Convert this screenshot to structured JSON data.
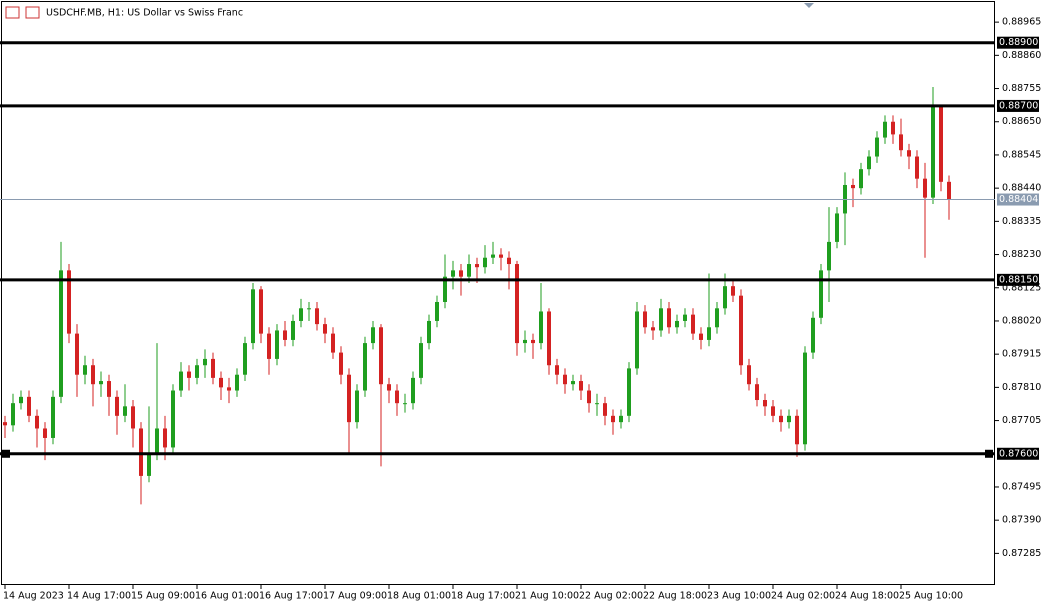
{
  "chart_data": {
    "type": "candlestick",
    "title": "USDCHF.MB, H1:  US Dollar vs Swiss Franc",
    "up_color": "#1f9e1f",
    "down_color": "#d42222",
    "ylim": [
      0.87185,
      0.89035
    ],
    "yticks": [
      {
        "value": 0.88965,
        "label": "0.88965"
      },
      {
        "value": 0.8886,
        "label": "0.88860"
      },
      {
        "value": 0.88755,
        "label": "0.88755"
      },
      {
        "value": 0.8865,
        "label": "0.88650"
      },
      {
        "value": 0.88545,
        "label": "0.88545"
      },
      {
        "value": 0.8844,
        "label": "0.88440"
      },
      {
        "value": 0.88335,
        "label": "0.88335"
      },
      {
        "value": 0.8823,
        "label": "0.88230"
      },
      {
        "value": 0.88125,
        "label": "0.88125"
      },
      {
        "value": 0.8802,
        "label": "0.88020"
      },
      {
        "value": 0.87915,
        "label": "0.87915"
      },
      {
        "value": 0.8781,
        "label": "0.87810"
      },
      {
        "value": 0.87705,
        "label": "0.87705"
      },
      {
        "value": 0.87495,
        "label": "0.87495"
      },
      {
        "value": 0.8739,
        "label": "0.87390"
      },
      {
        "value": 0.87285,
        "label": "0.87285"
      }
    ],
    "levels": [
      {
        "value": 0.889,
        "label": "0.88900"
      },
      {
        "value": 0.887,
        "label": "0.88700"
      },
      {
        "value": 0.8815,
        "label": "0.88150"
      },
      {
        "value": 0.876,
        "label": "0.87600"
      }
    ],
    "current_price": 0.88404,
    "categories": [
      "14 Aug 2023",
      null,
      null,
      null,
      null,
      null,
      null,
      null,
      "14 Aug 17:00",
      null,
      null,
      null,
      null,
      null,
      null,
      null,
      "15 Aug 09:00",
      null,
      null,
      null,
      null,
      null,
      null,
      null,
      "16 Aug 01:00",
      null,
      null,
      null,
      null,
      null,
      null,
      null,
      "16 Aug 17:00",
      null,
      null,
      null,
      null,
      null,
      null,
      null,
      "17 Aug 09:00",
      null,
      null,
      null,
      null,
      null,
      null,
      null,
      "18 Aug 01:00",
      null,
      null,
      null,
      null,
      null,
      null,
      null,
      "18 Aug 17:00",
      null,
      null,
      null,
      null,
      null,
      null,
      null,
      "21 Aug 10:00",
      null,
      null,
      null,
      null,
      null,
      null,
      null,
      "22 Aug 02:00",
      null,
      null,
      null,
      null,
      null,
      null,
      null,
      "22 Aug 18:00",
      null,
      null,
      null,
      null,
      null,
      null,
      null,
      "23 Aug 10:00",
      null,
      null,
      null,
      null,
      null,
      null,
      null,
      "24 Aug 02:00",
      null,
      null,
      null,
      null,
      null,
      null,
      null,
      "24 Aug 18:00",
      null,
      null,
      null,
      null,
      null,
      null,
      null,
      "25 Aug 10:00",
      null,
      null,
      null,
      null,
      null,
      null
    ],
    "ohlc": [
      [
        0.877,
        0.8772,
        0.8765,
        0.8769
      ],
      [
        0.8769,
        0.8779,
        0.8767,
        0.8776
      ],
      [
        0.8776,
        0.878,
        0.8774,
        0.8778
      ],
      [
        0.8778,
        0.878,
        0.877,
        0.8772
      ],
      [
        0.8772,
        0.8774,
        0.8762,
        0.8768
      ],
      [
        0.8768,
        0.877,
        0.8758,
        0.8765
      ],
      [
        0.8765,
        0.878,
        0.8763,
        0.8778
      ],
      [
        0.8778,
        0.8827,
        0.8776,
        0.8818
      ],
      [
        0.8818,
        0.882,
        0.8795,
        0.8798
      ],
      [
        0.8798,
        0.8801,
        0.8778,
        0.8785
      ],
      [
        0.8785,
        0.8791,
        0.8782,
        0.8788
      ],
      [
        0.8788,
        0.879,
        0.8775,
        0.8782
      ],
      [
        0.8782,
        0.8786,
        0.8778,
        0.8783
      ],
      [
        0.8783,
        0.8785,
        0.8772,
        0.8778
      ],
      [
        0.8778,
        0.878,
        0.8766,
        0.8772
      ],
      [
        0.8772,
        0.8782,
        0.877,
        0.8775
      ],
      [
        0.8775,
        0.8777,
        0.8762,
        0.8768
      ],
      [
        0.8768,
        0.877,
        0.8744,
        0.8753
      ],
      [
        0.8753,
        0.8775,
        0.8751,
        0.876
      ],
      [
        0.876,
        0.8795,
        0.8758,
        0.8768
      ],
      [
        0.8768,
        0.8772,
        0.8758,
        0.8762
      ],
      [
        0.8762,
        0.8782,
        0.876,
        0.878
      ],
      [
        0.878,
        0.8789,
        0.8778,
        0.8786
      ],
      [
        0.8786,
        0.8788,
        0.878,
        0.8784
      ],
      [
        0.8784,
        0.879,
        0.8782,
        0.8788
      ],
      [
        0.8788,
        0.8793,
        0.8784,
        0.879
      ],
      [
        0.879,
        0.8792,
        0.8782,
        0.8784
      ],
      [
        0.8784,
        0.8786,
        0.8777,
        0.8781
      ],
      [
        0.8781,
        0.8784,
        0.8776,
        0.878
      ],
      [
        0.878,
        0.8787,
        0.8778,
        0.8785
      ],
      [
        0.8785,
        0.8797,
        0.8783,
        0.8795
      ],
      [
        0.8795,
        0.8814,
        0.8793,
        0.8812
      ],
      [
        0.8812,
        0.8813,
        0.8795,
        0.8798
      ],
      [
        0.8798,
        0.88,
        0.8785,
        0.879
      ],
      [
        0.879,
        0.8801,
        0.8788,
        0.8799
      ],
      [
        0.8799,
        0.8802,
        0.8794,
        0.8796
      ],
      [
        0.8796,
        0.8804,
        0.8794,
        0.8802
      ],
      [
        0.8802,
        0.8809,
        0.88,
        0.8806
      ],
      [
        0.8806,
        0.8808,
        0.8802,
        0.8806
      ],
      [
        0.8806,
        0.8808,
        0.8799,
        0.8801
      ],
      [
        0.8801,
        0.8803,
        0.8795,
        0.8798
      ],
      [
        0.8798,
        0.88,
        0.879,
        0.8792
      ],
      [
        0.8792,
        0.8794,
        0.8782,
        0.8785
      ],
      [
        0.8785,
        0.8787,
        0.876,
        0.877
      ],
      [
        0.877,
        0.8782,
        0.8768,
        0.878
      ],
      [
        0.878,
        0.8797,
        0.8778,
        0.8795
      ],
      [
        0.8795,
        0.8802,
        0.8793,
        0.88
      ],
      [
        0.88,
        0.8801,
        0.8756,
        0.8782
      ],
      [
        0.8782,
        0.8784,
        0.8776,
        0.878
      ],
      [
        0.878,
        0.8782,
        0.8772,
        0.8776
      ],
      [
        0.8776,
        0.8779,
        0.8773,
        0.8776
      ],
      [
        0.8776,
        0.8786,
        0.8774,
        0.8784
      ],
      [
        0.8784,
        0.8797,
        0.8782,
        0.8795
      ],
      [
        0.8795,
        0.8804,
        0.8793,
        0.8802
      ],
      [
        0.8802,
        0.881,
        0.88,
        0.8808
      ],
      [
        0.8808,
        0.8823,
        0.8806,
        0.8816
      ],
      [
        0.8816,
        0.8821,
        0.8812,
        0.8818
      ],
      [
        0.8818,
        0.882,
        0.881,
        0.8816
      ],
      [
        0.8816,
        0.8823,
        0.8814,
        0.882
      ],
      [
        0.882,
        0.8822,
        0.8814,
        0.8819
      ],
      [
        0.8819,
        0.8826,
        0.8817,
        0.8822
      ],
      [
        0.8822,
        0.8827,
        0.882,
        0.8823
      ],
      [
        0.8823,
        0.8825,
        0.8818,
        0.8822
      ],
      [
        0.8822,
        0.8824,
        0.8812,
        0.882
      ],
      [
        0.882,
        0.8821,
        0.8791,
        0.8795
      ],
      [
        0.8795,
        0.8799,
        0.8792,
        0.8796
      ],
      [
        0.8796,
        0.8798,
        0.879,
        0.8795
      ],
      [
        0.8795,
        0.8814,
        0.8793,
        0.8805
      ],
      [
        0.8805,
        0.8806,
        0.8785,
        0.8788
      ],
      [
        0.8788,
        0.879,
        0.8782,
        0.8785
      ],
      [
        0.8785,
        0.8787,
        0.8779,
        0.8782
      ],
      [
        0.8782,
        0.8785,
        0.878,
        0.8783
      ],
      [
        0.8783,
        0.8785,
        0.8777,
        0.878
      ],
      [
        0.878,
        0.8782,
        0.8773,
        0.8776
      ],
      [
        0.8776,
        0.8779,
        0.8772,
        0.8776
      ],
      [
        0.8776,
        0.8778,
        0.8769,
        0.8772
      ],
      [
        0.8772,
        0.8774,
        0.8766,
        0.877
      ],
      [
        0.877,
        0.8774,
        0.8768,
        0.8772
      ],
      [
        0.8772,
        0.8789,
        0.877,
        0.8787
      ],
      [
        0.8787,
        0.8808,
        0.8785,
        0.8805
      ],
      [
        0.8805,
        0.8807,
        0.8798,
        0.88
      ],
      [
        0.88,
        0.8802,
        0.8796,
        0.8799
      ],
      [
        0.8799,
        0.8809,
        0.8797,
        0.8806
      ],
      [
        0.8806,
        0.8808,
        0.8798,
        0.88
      ],
      [
        0.88,
        0.8804,
        0.8798,
        0.8802
      ],
      [
        0.8802,
        0.8806,
        0.88,
        0.8804
      ],
      [
        0.8804,
        0.8806,
        0.8796,
        0.8798
      ],
      [
        0.8798,
        0.88,
        0.8793,
        0.8796
      ],
      [
        0.8796,
        0.8817,
        0.8794,
        0.88
      ],
      [
        0.88,
        0.8808,
        0.8798,
        0.8806
      ],
      [
        0.8806,
        0.8817,
        0.8804,
        0.8813
      ],
      [
        0.8813,
        0.8815,
        0.8808,
        0.881
      ],
      [
        0.881,
        0.8812,
        0.8785,
        0.8788
      ],
      [
        0.8788,
        0.879,
        0.878,
        0.8782
      ],
      [
        0.8782,
        0.8784,
        0.8775,
        0.8777
      ],
      [
        0.8777,
        0.8779,
        0.8772,
        0.8775
      ],
      [
        0.8775,
        0.8777,
        0.877,
        0.8772
      ],
      [
        0.8772,
        0.8774,
        0.8767,
        0.877
      ],
      [
        0.877,
        0.8774,
        0.8768,
        0.8772
      ],
      [
        0.8772,
        0.8774,
        0.8759,
        0.8763
      ],
      [
        0.8763,
        0.8794,
        0.8761,
        0.8792
      ],
      [
        0.8792,
        0.8805,
        0.879,
        0.8803
      ],
      [
        0.8803,
        0.882,
        0.8801,
        0.8818
      ],
      [
        0.8818,
        0.8838,
        0.8808,
        0.8827
      ],
      [
        0.8827,
        0.8838,
        0.8825,
        0.8836
      ],
      [
        0.8836,
        0.8849,
        0.8826,
        0.8845
      ],
      [
        0.8845,
        0.8847,
        0.8838,
        0.8844
      ],
      [
        0.8844,
        0.8852,
        0.8842,
        0.885
      ],
      [
        0.885,
        0.8856,
        0.8848,
        0.8854
      ],
      [
        0.8854,
        0.8862,
        0.8852,
        0.886
      ],
      [
        0.886,
        0.8867,
        0.8858,
        0.8865
      ],
      [
        0.8865,
        0.8867,
        0.8858,
        0.8861
      ],
      [
        0.8861,
        0.8866,
        0.8854,
        0.8856
      ],
      [
        0.8856,
        0.8858,
        0.885,
        0.8854
      ],
      [
        0.8854,
        0.8856,
        0.8844,
        0.8847
      ],
      [
        0.8847,
        0.8852,
        0.8822,
        0.8841
      ],
      [
        0.8841,
        0.8876,
        0.8839,
        0.887
      ],
      [
        0.887,
        0.887,
        0.8843,
        0.8846
      ],
      [
        0.8846,
        0.8848,
        0.8834,
        0.88404
      ]
    ]
  }
}
